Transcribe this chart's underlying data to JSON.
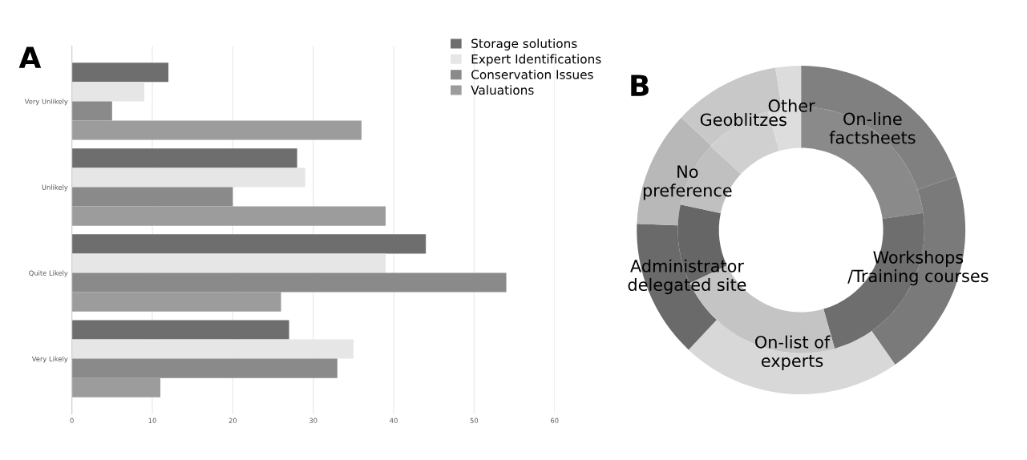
{
  "chart_data": [
    {
      "type": "bar",
      "title": "A",
      "orientation": "horizontal",
      "categories": [
        "Very Unlikely",
        "Unlikely",
        "Quite Likely",
        "Very Likely"
      ],
      "series": [
        {
          "name": "Storage solutions",
          "color": "#6e6e6e",
          "values": [
            12,
            28,
            44,
            27
          ]
        },
        {
          "name": "Expert Identifications",
          "color": "#e6e6e6",
          "values": [
            9,
            29,
            39,
            35
          ]
        },
        {
          "name": "Conservation Issues",
          "color": "#8a8a8a",
          "values": [
            5,
            20,
            54,
            33
          ]
        },
        {
          "name": "Valuations",
          "color": "#9c9c9c",
          "values": [
            36,
            39,
            26,
            11
          ]
        }
      ],
      "xlim": [
        0,
        60
      ],
      "xticks": [
        0,
        10,
        20,
        30,
        40,
        50,
        60
      ],
      "grid": "x",
      "legend": "top right"
    },
    {
      "type": "donut",
      "title": "B",
      "categories": [
        "On-line\nfactsheets",
        "Workshops\n/Training courses",
        "On-list of\nexperts",
        "Administrator\ndelegated site",
        "No\npreference",
        "Geoblitzes",
        "Other"
      ],
      "series": [
        {
          "values": [
            19.7,
            20.6,
            21.7,
            13.6,
            11.4,
            10.5,
            2.5
          ],
          "colors": [
            "#808080",
            "#7a7a7a",
            "#d8d8d8",
            "#6a6a6a",
            "#b8b8b8",
            "#c8c8c8",
            "#dcdcdc"
          ]
        },
        {
          "values": [
            22.8,
            22.8,
            22.3,
            10.4,
            8.6,
            8.8,
            4.3
          ],
          "colors": [
            "#8a8a8a",
            "#6e6e6e",
            "#c4c4c4",
            "#666666",
            "#c0c0c0",
            "#d0d0d0",
            "#dddddd"
          ]
        }
      ]
    }
  ]
}
